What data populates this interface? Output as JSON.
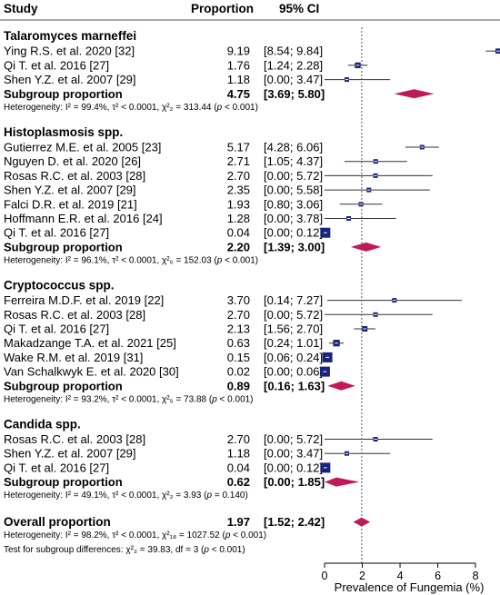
{
  "header": {
    "study": "Study",
    "proportion": "Proportion",
    "ci": "95% CI"
  },
  "chart_data": {
    "type": "forest",
    "xlabel": "Prevalence of Fungemia (%)",
    "xlim": [
      0,
      9.2
    ],
    "xticks": [
      0,
      2,
      4,
      6,
      8
    ],
    "reference_line": 1.97,
    "colors": {
      "square": "#1a237e",
      "diamond": "#c2185b",
      "ci_line": "#333333",
      "ref_line": "#555555"
    },
    "groups": [
      {
        "name": "Talaromyces marneffei",
        "studies": [
          {
            "label": "Ying R.S. et al. 2020 [32]",
            "prop": "9.19",
            "ci": "[8.54; 9.84]",
            "est": 9.19,
            "lo": 8.54,
            "hi": 9.84
          },
          {
            "label": "Qi T. et al. 2016 [27]",
            "prop": "1.76",
            "ci": "[1.24; 2.28]",
            "est": 1.76,
            "lo": 1.24,
            "hi": 2.28
          },
          {
            "label": "Shen Y.Z. et al. 2007 [29]",
            "prop": "1.18",
            "ci": "[0.00; 3.47]",
            "est": 1.18,
            "lo": 0.0,
            "hi": 3.47
          }
        ],
        "subgroup": {
          "label": "Subgroup proportion",
          "prop": "4.75",
          "ci": "[3.69; 5.80]",
          "est": 4.75,
          "lo": 3.69,
          "hi": 5.8
        },
        "heterogeneity": {
          "pre": "Heterogeneity: I² = 99.4%, τ² < 0.0001, χ²₂ = 313.44 (",
          "p": "p",
          "post": " < 0.001)"
        }
      },
      {
        "name": "Histoplasmosis spp.",
        "studies": [
          {
            "label": "Gutierrez M.E. et al. 2005 [23]",
            "prop": "5.17",
            "ci": "[4.28; 6.06]",
            "est": 5.17,
            "lo": 4.28,
            "hi": 6.06
          },
          {
            "label": "Nguyen D. et al.  2020 [26]",
            "prop": "2.71",
            "ci": "[1.05; 4.37]",
            "est": 2.71,
            "lo": 1.05,
            "hi": 4.37
          },
          {
            "label": "Rosas R.C. et al. 2003 [28]",
            "prop": "2.70",
            "ci": "[0.00; 5.72]",
            "est": 2.7,
            "lo": 0.0,
            "hi": 5.72
          },
          {
            "label": "Shen Y.Z. et al. 2007 [29]",
            "prop": "2.35",
            "ci": "[0.00; 5.58]",
            "est": 2.35,
            "lo": 0.0,
            "hi": 5.58
          },
          {
            "label": "Falci D.R. et al.  2019 [21]",
            "prop": "1.93",
            "ci": "[0.80; 3.06]",
            "est": 1.93,
            "lo": 0.8,
            "hi": 3.06
          },
          {
            "label": "Hoffmann E.R. et al. 2016 [24]",
            "prop": "1.28",
            "ci": "[0.00; 3.78]",
            "est": 1.28,
            "lo": 0.0,
            "hi": 3.78
          },
          {
            "label": "Qi T. et al. 2016 [27]",
            "prop": "0.04",
            "ci": "[0.00; 0.12]",
            "est": 0.04,
            "lo": 0.0,
            "hi": 0.12
          }
        ],
        "subgroup": {
          "label": "Subgroup proportion",
          "prop": "2.20",
          "ci": "[1.39; 3.00]",
          "est": 2.2,
          "lo": 1.39,
          "hi": 3.0
        },
        "heterogeneity": {
          "pre": "Heterogeneity: I² = 96.1%, τ² < 0.0001, χ²₆ = 152.03 (",
          "p": "p",
          "post": " < 0.001)"
        }
      },
      {
        "name": "Cryptococcus spp.",
        "studies": [
          {
            "label": "Ferreira M.D.F.  et al. 2019 [22]",
            "prop": "3.70",
            "ci": "[0.14; 7.27]",
            "est": 3.7,
            "lo": 0.14,
            "hi": 7.27
          },
          {
            "label": "Rosas R.C. et al. 2003 [28]",
            "prop": "2.70",
            "ci": "[0.00; 5.72]",
            "est": 2.7,
            "lo": 0.0,
            "hi": 5.72
          },
          {
            "label": "Qi T. et al. 2016 [27]",
            "prop": "2.13",
            "ci": "[1.56; 2.70]",
            "est": 2.13,
            "lo": 1.56,
            "hi": 2.7
          },
          {
            "label": "Makadzange T.A. et al. 2021 [25]",
            "prop": "0.63",
            "ci": "[0.24; 1.01]",
            "est": 0.63,
            "lo": 0.24,
            "hi": 1.01
          },
          {
            "label": "Wake R.M. et al. 2019 [31]",
            "prop": "0.15",
            "ci": "[0.06; 0.24]",
            "est": 0.15,
            "lo": 0.06,
            "hi": 0.24
          },
          {
            "label": "Van Schalkwyk E. et al. 2020 [30]",
            "prop": "0.02",
            "ci": "[0.00; 0.06]",
            "est": 0.02,
            "lo": 0.0,
            "hi": 0.06
          }
        ],
        "subgroup": {
          "label": "Subgroup proportion",
          "prop": "0.89",
          "ci": "[0.16; 1.63]",
          "est": 0.89,
          "lo": 0.16,
          "hi": 1.63
        },
        "heterogeneity": {
          "pre": "Heterogeneity: I² = 93.2%, τ² < 0.0001, χ²₅ = 73.88 (",
          "p": "p",
          "post": " < 0.001)"
        }
      },
      {
        "name": "Candida spp.",
        "studies": [
          {
            "label": "Rosas R.C. et al. 2003 [28]",
            "prop": "2.70",
            "ci": "[0.00; 5.72]",
            "est": 2.7,
            "lo": 0.0,
            "hi": 5.72
          },
          {
            "label": "Shen Y.Z. et al. 2007 [29]",
            "prop": "1.18",
            "ci": "[0.00; 3.47]",
            "est": 1.18,
            "lo": 0.0,
            "hi": 3.47
          },
          {
            "label": "Qi T. et al. 2016 [27]",
            "prop": "0.04",
            "ci": "[0.00; 0.12]",
            "est": 0.04,
            "lo": 0.0,
            "hi": 0.12
          }
        ],
        "subgroup": {
          "label": "Subgroup proportion",
          "prop": "0.62",
          "ci": "[0.00; 1.85]",
          "est": 0.62,
          "lo": 0.0,
          "hi": 1.85
        },
        "heterogeneity": {
          "pre": "Heterogeneity: I² = 49.1%, τ² < 0.0001, χ²₂ = 3.93 (",
          "p": "p",
          "post": " = 0.140)"
        }
      }
    ],
    "overall": {
      "label": "Overall proportion",
      "prop": "1.97",
      "ci": "[1.52; 2.42]",
      "est": 1.97,
      "lo": 1.52,
      "hi": 2.42
    },
    "overall_heterogeneity": {
      "pre": "Heterogeneity: I² = 98.2%, τ² < 0.0001, χ²₁₈ = 1027.52 (",
      "p": "p",
      "post": " < 0.001)"
    },
    "subgroup_test": {
      "pre": "Test for subgroup differences: χ²₃ = 39.83, df = 3 (",
      "p": "p",
      "post": " < 0.001)"
    }
  }
}
